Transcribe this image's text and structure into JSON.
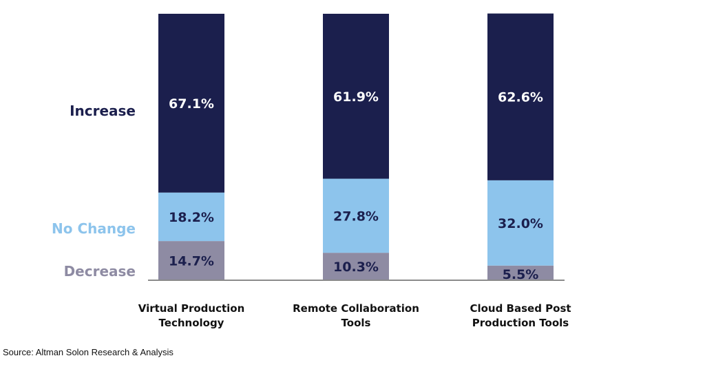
{
  "chart_data": {
    "type": "stacked-bar",
    "categories": [
      [
        "Virtual Production",
        "Technology"
      ],
      [
        "Remote Collaboration",
        "Tools"
      ],
      [
        "Cloud Based Post",
        "Production Tools"
      ]
    ],
    "series": [
      {
        "name": "Decrease",
        "color": "#8e8ba3",
        "labelColor": "#8e8ba3",
        "values": [
          14.7,
          10.3,
          5.5
        ],
        "labels": [
          "14.7%",
          "10.3%",
          "5.5%"
        ]
      },
      {
        "name": "No Change",
        "color": "#8dc4ec",
        "labelColor": "#8dc4ec",
        "values": [
          18.2,
          27.8,
          32.0
        ],
        "labels": [
          "18.2%",
          "27.8%",
          "32.0%"
        ]
      },
      {
        "name": "Increase",
        "color": "#1b1f4d",
        "labelColor": "#1b1f4d",
        "values": [
          67.1,
          61.9,
          62.6
        ],
        "labels": [
          "67.1%",
          "61.9%",
          "62.6%"
        ]
      }
    ],
    "ylim": [
      0,
      100
    ],
    "stacked": true,
    "grid": false,
    "legend": "left"
  },
  "source": "Source: Altman Solon Research & Analysis"
}
